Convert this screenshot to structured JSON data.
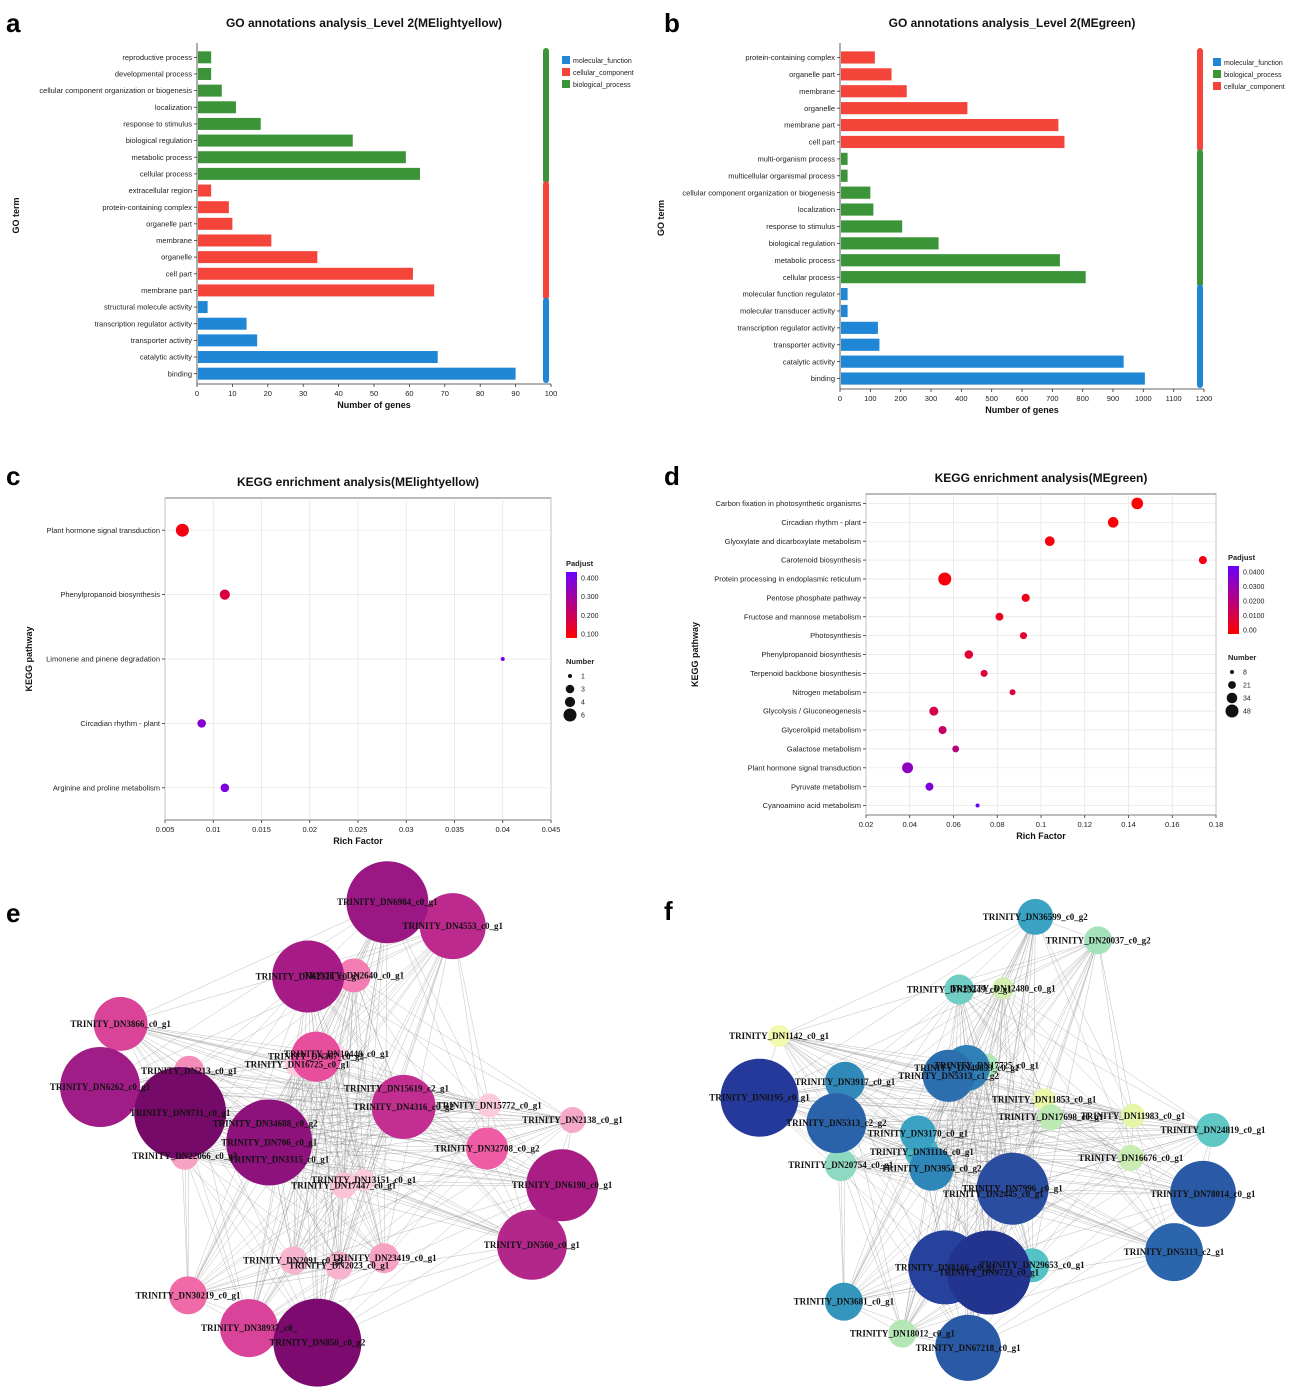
{
  "panels": [
    "a",
    "b",
    "c",
    "d",
    "e",
    "f"
  ],
  "chart_data": [
    {
      "panel": "a",
      "type": "bar",
      "orientation": "horizontal",
      "title": "GO annotations analysis_Level 2(MElightyellow)",
      "xlabel": "Number of genes",
      "ylabel": "GO term",
      "xlim": [
        0,
        100
      ],
      "xticks": [
        0,
        10,
        20,
        30,
        40,
        50,
        60,
        70,
        80,
        90,
        100
      ],
      "legend": [
        {
          "name": "molecular_function",
          "color": "#1f87d6"
        },
        {
          "name": "cellular_component",
          "color": "#f5453b"
        },
        {
          "name": "biological_process",
          "color": "#3c9439"
        }
      ],
      "legend_position": "top-right",
      "categories": [
        "reproductive process",
        "developmental process",
        "cellular component organization or biogenesis",
        "localization",
        "response to stimulus",
        "biological regulation",
        "metabolic process",
        "cellular process",
        "extracellular region",
        "protein-containing complex",
        "organelle part",
        "membrane",
        "organelle",
        "cell part",
        "membrane part",
        "structural molecule activity",
        "transcription regulator activity",
        "transporter activity",
        "catalytic activity",
        "binding"
      ],
      "values": [
        4,
        4,
        7,
        11,
        18,
        44,
        59,
        63,
        4,
        9,
        10,
        21,
        34,
        61,
        67,
        3,
        14,
        17,
        68,
        90
      ],
      "groups": [
        "biological_process",
        "biological_process",
        "biological_process",
        "biological_process",
        "biological_process",
        "biological_process",
        "biological_process",
        "biological_process",
        "cellular_component",
        "cellular_component",
        "cellular_component",
        "cellular_component",
        "cellular_component",
        "cellular_component",
        "cellular_component",
        "molecular_function",
        "molecular_function",
        "molecular_function",
        "molecular_function",
        "molecular_function"
      ]
    },
    {
      "panel": "b",
      "type": "bar",
      "orientation": "horizontal",
      "title": "GO annotations analysis_Level 2(MEgreen)",
      "xlabel": "Number of genes",
      "ylabel": "GO term",
      "xlim": [
        0,
        1200
      ],
      "xticks": [
        0,
        100,
        200,
        300,
        400,
        500,
        600,
        700,
        800,
        900,
        1000,
        1100,
        1200
      ],
      "legend": [
        {
          "name": "molecular_function",
          "color": "#1f87d6"
        },
        {
          "name": "biological_process",
          "color": "#3c9439"
        },
        {
          "name": "cellular_component",
          "color": "#f5453b"
        }
      ],
      "legend_position": "top-right",
      "categories": [
        "protein-containing complex",
        "organelle part",
        "membrane",
        "organelle",
        "membrane part",
        "cell part",
        "multi-organism process",
        "multicellular organismal process",
        "cellular component organization or biogenesis",
        "localization",
        "response to stimulus",
        "biological regulation",
        "metabolic process",
        "cellular process",
        "molecular function regulator",
        "molecular transducer activity",
        "transcription regulator activity",
        "transporter activity",
        "catalytic activity",
        "binding"
      ],
      "values": [
        115,
        170,
        220,
        420,
        720,
        740,
        25,
        25,
        100,
        110,
        205,
        325,
        725,
        810,
        25,
        25,
        125,
        130,
        935,
        1005
      ],
      "groups": [
        "cellular_component",
        "cellular_component",
        "cellular_component",
        "cellular_component",
        "cellular_component",
        "cellular_component",
        "biological_process",
        "biological_process",
        "biological_process",
        "biological_process",
        "biological_process",
        "biological_process",
        "biological_process",
        "biological_process",
        "molecular_function",
        "molecular_function",
        "molecular_function",
        "molecular_function",
        "molecular_function",
        "molecular_function"
      ]
    },
    {
      "panel": "c",
      "type": "scatter",
      "title": "KEGG enrichment analysis(MElightyellow)",
      "xlabel": "Rich Factor",
      "ylabel": "KEGG pathway",
      "xlim": [
        0.005,
        0.045
      ],
      "xticks": [
        0.005,
        0.01,
        0.015,
        0.02,
        0.025,
        0.03,
        0.035,
        0.04,
        0.045
      ],
      "grid": true,
      "categories": [
        "Plant hormone signal transduction",
        "Phenylpropanoid biosynthesis",
        "Limonene and pinene degradation",
        "Circadian rhythm - plant",
        "Arginine and proline metabolism"
      ],
      "x": [
        0.0068,
        0.0112,
        0.04,
        0.0088,
        0.0112
      ],
      "number": [
        6,
        4,
        1,
        3,
        3
      ],
      "padjust": [
        0.08,
        0.15,
        0.43,
        0.38,
        0.4
      ],
      "padjust_legend": {
        "title": "Padjust",
        "ticks": [
          "0.400",
          "0.300",
          "0.200",
          "0.100"
        ],
        "range": [
          0.05,
          0.45
        ],
        "low_color": "#ff0000",
        "high_color": "#6a00ff"
      },
      "size_legend": {
        "title": "Number",
        "values": [
          "1",
          "3",
          "4",
          "6"
        ]
      }
    },
    {
      "panel": "d",
      "type": "scatter",
      "title": "KEGG enrichment analysis(MEgreen)",
      "xlabel": "Rich Factor",
      "ylabel": "KEGG pathway",
      "xlim": [
        0.02,
        0.18
      ],
      "xticks": [
        0.02,
        0.04,
        0.06,
        0.08,
        0.1,
        0.12,
        0.14,
        0.16,
        0.18
      ],
      "grid": true,
      "categories": [
        "Carbon fixation in photosynthetic organisms",
        "Circadian rhythm - plant",
        "Glyoxylate and dicarboxylate metabolism",
        "Carotenoid biosynthesis",
        "Protein processing in endoplasmic reticulum",
        "Pentose phosphate pathway",
        "Fructose and mannose metabolism",
        "Photosynthesis",
        "Phenylpropanoid biosynthesis",
        "Terpenoid backbone biosynthesis",
        "Nitrogen metabolism",
        "Glycolysis / Gluconeogenesis",
        "Glycerolipid metabolism",
        "Galactose metabolism",
        "Plant hormone signal transduction",
        "Pyruvate metabolism",
        "Cyanoamino acid metabolism"
      ],
      "x": [
        0.144,
        0.133,
        0.104,
        0.174,
        0.056,
        0.093,
        0.081,
        0.092,
        0.067,
        0.074,
        0.087,
        0.051,
        0.055,
        0.061,
        0.039,
        0.049,
        0.071
      ],
      "number": [
        40,
        34,
        30,
        22,
        48,
        22,
        21,
        18,
        24,
        18,
        14,
        26,
        22,
        17,
        36,
        22,
        8
      ],
      "padjust": [
        0.0,
        0.001,
        0.002,
        0.003,
        0.002,
        0.004,
        0.005,
        0.007,
        0.008,
        0.009,
        0.01,
        0.012,
        0.016,
        0.02,
        0.03,
        0.034,
        0.038
      ],
      "padjust_legend": {
        "title": "Padjust",
        "ticks": [
          "0.0400",
          "0.0300",
          "0.0200",
          "0.0100",
          "0.00"
        ],
        "range": [
          0.0,
          0.04
        ],
        "low_color": "#ff0000",
        "high_color": "#6a00ff"
      },
      "size_legend": {
        "title": "Number",
        "values": [
          "8",
          "21",
          "34",
          "48"
        ]
      }
    }
  ],
  "network_e": {
    "nodes": [
      {
        "label": "TRINITY_DN2138_c0_g1",
        "r": 13,
        "color": "#f6a9c8"
      },
      {
        "label": "TRINITY_DN23419_c0_g1",
        "r": 15,
        "color": "#f7a1c3"
      },
      {
        "label": "TRINITY_DN3315_c0_g1",
        "r": 22,
        "color": "#f069a6"
      },
      {
        "label": "TRINITY_DN850_c0_g2",
        "r": 44,
        "color": "#7d0a6e"
      },
      {
        "label": "TRINITY_DN22066_c0_g3",
        "r": 14,
        "color": "#f7a1c3"
      },
      {
        "label": "TRINITY_DN16725_c0_g1",
        "r": 12,
        "color": "#fbcbdd"
      },
      {
        "label": "TRINITY_DN6262_c0_g1",
        "r": 40,
        "color": "#a01d87"
      },
      {
        "label": "TRINITY_DN62126_c0_g1",
        "r": 36,
        "color": "#a71b86"
      },
      {
        "label": "TRINITY_DN15619_c2_g1",
        "r": 12,
        "color": "#fbd3e2"
      },
      {
        "label": "TRINITY_DN6984_c0_g1",
        "r": 41,
        "color": "#9a1784"
      },
      {
        "label": "TRINITY_DN15772_c0_g1",
        "r": 12,
        "color": "#fbcbdd"
      },
      {
        "label": "TRINITY_DN13151_c0_g1",
        "r": 11,
        "color": "#fbcbdd"
      },
      {
        "label": "TRINITY_DN6190_c0_g1",
        "r": 36,
        "color": "#a81e84"
      },
      {
        "label": "TRINITY_DN2023_c0_g1",
        "r": 14,
        "color": "#f8b3cf"
      },
      {
        "label": "TRINITY_DN706_c0_g1",
        "r": 43,
        "color": "#8d127c"
      },
      {
        "label": "TRINITY_DN38937_c0_",
        "r": 29,
        "color": "#d9449a"
      },
      {
        "label": "TRINITY_DN9731_c0_g1",
        "r": 46,
        "color": "#760a68"
      },
      {
        "label": "TRINITY_DN367_c0_g2",
        "r": 25,
        "color": "#e74e9e"
      },
      {
        "label": "TRINITY_DN3866_c0_g1",
        "r": 27,
        "color": "#d94498"
      },
      {
        "label": "TRINITY_DN2640_c0_g1",
        "r": 17,
        "color": "#f37cb2"
      },
      {
        "label": "TRINITY_DN4316_c0_g2",
        "r": 32,
        "color": "#c22f90"
      },
      {
        "label": "TRINITY_DN4553_c0_g1",
        "r": 33,
        "color": "#bc2a8e"
      },
      {
        "label": "TRINITY_DN32708_c0_g2",
        "r": 21,
        "color": "#f05ba5"
      },
      {
        "label": "TRINITY_DN17447_c0_g1",
        "r": 13,
        "color": "#fbc2d8"
      },
      {
        "label": "TRINITY_DN560_c0_g1",
        "r": 35,
        "color": "#b3278b"
      },
      {
        "label": "TRINITY_DN2091_c0_g1",
        "r": 14,
        "color": "#f8b3cf"
      },
      {
        "label": "TRINITY_DN34688_c0_g2",
        "r": 24,
        "color": "#ed60a7"
      },
      {
        "label": "TRINITY_DN30219_c0_g1",
        "r": 19,
        "color": "#f16aa8"
      },
      {
        "label": "TRINITY_DN213_c0_g1",
        "r": 15,
        "color": "#f48bb8"
      },
      {
        "label": "TRINITY_DN10440_c0_g1",
        "r": 10,
        "color": "#fcd7e6"
      }
    ]
  },
  "network_f": {
    "nodes": [
      {
        "label": "TRINITY_DN24819_c0_g1",
        "r": 17,
        "color": "#5fc8c4"
      },
      {
        "label": "TRINITY_DN29653_c0_g1",
        "r": 17,
        "color": "#55c2c5"
      },
      {
        "label": "TRINITY_DN3954_c0_g2",
        "r": 22,
        "color": "#2f86b8"
      },
      {
        "label": "TRINITY_DN67218_c0_g1",
        "r": 33,
        "color": "#2a5aa5"
      },
      {
        "label": "TRINITY_DN20754_c0_g1",
        "r": 16,
        "color": "#8fd9c2"
      },
      {
        "label": "TRINITY_DN5313_c1_g2",
        "r": 26,
        "color": "#2c6faf"
      },
      {
        "label": "TRINITY_DN8195_c0_g1",
        "r": 39,
        "color": "#24399a"
      },
      {
        "label": "TRINITY_DN23249_c0_g1",
        "r": 15,
        "color": "#71cec4"
      },
      {
        "label": "TRINITY_DN11853_c0_g1",
        "r": 11,
        "color": "#eef8a9"
      },
      {
        "label": "TRINITY_DN36599_c0_g2",
        "r": 18,
        "color": "#3aa2c2"
      },
      {
        "label": "TRINITY_DN11983_c0_g1",
        "r": 12,
        "color": "#e6f6a8"
      },
      {
        "label": "TRINITY_DN7996_c0_g1",
        "r": 36,
        "color": "#2b4da0"
      },
      {
        "label": "TRINITY_DN78014_c0_g1",
        "r": 33,
        "color": "#2a5aa5"
      },
      {
        "label": "TRINITY_DN9723_c0_g1",
        "r": 42,
        "color": "#23348f"
      },
      {
        "label": "TRINITY_DN31116_c0_g1",
        "r": 17,
        "color": "#4ab7c2"
      },
      {
        "label": "TRINITY_DN18012_c0_g1",
        "r": 14,
        "color": "#b5e7b6"
      },
      {
        "label": "TRINITY_DN5313_c2_g2",
        "r": 30,
        "color": "#2b63aa"
      },
      {
        "label": "TRINITY_DN49853_c0_g1",
        "r": 23,
        "color": "#2f80b6"
      },
      {
        "label": "TRINITY_DN1142_c0_g1",
        "r": 11,
        "color": "#f3f9ac"
      },
      {
        "label": "TRINITY_DN12480_c0_g1",
        "r": 11,
        "color": "#d2efb0"
      },
      {
        "label": "TRINITY_DN17698_c0_g1",
        "r": 13,
        "color": "#bde9b4"
      },
      {
        "label": "TRINITY_DN20037_c0_g2",
        "r": 14,
        "color": "#a4e2bb"
      },
      {
        "label": "TRINITY_DN16676_c0_g1",
        "r": 13,
        "color": "#c9ecb2"
      },
      {
        "label": "TRINITY_DN2445_c0_g1",
        "r": 16,
        "color": "#71cdc3"
      },
      {
        "label": "TRINITY_DN5313_c2_g1",
        "r": 29,
        "color": "#2b65ab"
      },
      {
        "label": "TRINITY_DN8166_c0_g1",
        "r": 37,
        "color": "#26429c"
      },
      {
        "label": "TRINITY_DN3170_c0_g1",
        "r": 18,
        "color": "#3aa2c2"
      },
      {
        "label": "TRINITY_DN3681_c0_g1",
        "r": 19,
        "color": "#3596bd"
      },
      {
        "label": "TRINITY_DN3917_c0_g1",
        "r": 20,
        "color": "#3189ba"
      },
      {
        "label": "TRINITY_DN17725_c0_g1",
        "r": 12,
        "color": "#aee5b9"
      }
    ]
  }
}
